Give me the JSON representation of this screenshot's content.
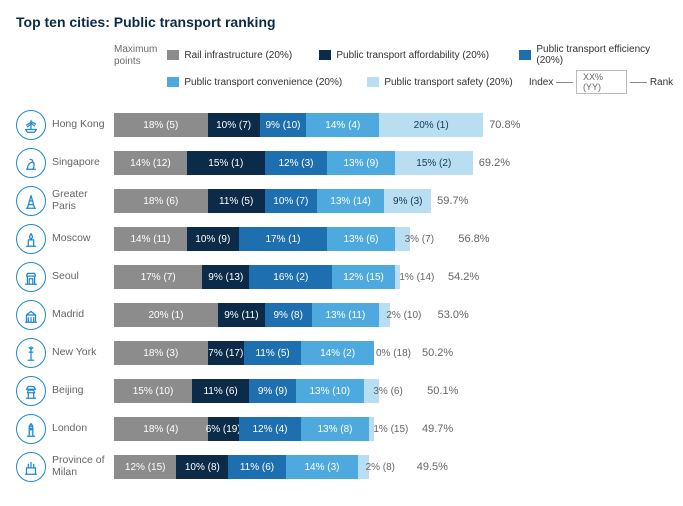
{
  "title": "Top ten cities: Public transport ranking",
  "legend": {
    "max_label_1": "Maximum",
    "max_label_2": "points",
    "items": [
      {
        "label": "Rail infrastructure (20%)",
        "color": "#8c8c8c"
      },
      {
        "label": "Public transport affordability (20%)",
        "color": "#0b2b49"
      },
      {
        "label": "Public transport efficiency (20%)",
        "color": "#1e6fb0"
      },
      {
        "label": "Public transport convenience (20%)",
        "color": "#4ea9de"
      },
      {
        "label": "Public transport safety (20%)",
        "color": "#b9def1"
      }
    ],
    "index_label": "Index",
    "index_sample": "XX% (YY)",
    "rank_label": "Rank"
  },
  "chart": {
    "type": "stacked-bar-horizontal",
    "full_width_pct": 100,
    "colors": {
      "rail": "#8c8c8c",
      "afford": "#0b2b49",
      "eff": "#1e6fb0",
      "conv": "#4ea9de",
      "safe": "#b9def1"
    },
    "label_color_light": "#ffffff",
    "label_color_dark": "#0b3a5a",
    "total_color": "#666666",
    "cities": [
      {
        "name": "Hong Kong",
        "total": "70.8%",
        "segs": [
          {
            "k": "rail",
            "v": 18,
            "r": 5
          },
          {
            "k": "afford",
            "v": 10,
            "r": 7
          },
          {
            "k": "eff",
            "v": 9,
            "r": 10
          },
          {
            "k": "conv",
            "v": 14,
            "r": 4
          },
          {
            "k": "safe",
            "v": 20,
            "r": 1
          }
        ]
      },
      {
        "name": "Singapore",
        "total": "69.2%",
        "segs": [
          {
            "k": "rail",
            "v": 14,
            "r": 12
          },
          {
            "k": "afford",
            "v": 15,
            "r": 1
          },
          {
            "k": "eff",
            "v": 12,
            "r": 3
          },
          {
            "k": "conv",
            "v": 13,
            "r": 9
          },
          {
            "k": "safe",
            "v": 15,
            "r": 2
          }
        ]
      },
      {
        "name": "Greater Paris",
        "total": "59.7%",
        "segs": [
          {
            "k": "rail",
            "v": 18,
            "r": 6
          },
          {
            "k": "afford",
            "v": 11,
            "r": 5
          },
          {
            "k": "eff",
            "v": 10,
            "r": 7
          },
          {
            "k": "conv",
            "v": 13,
            "r": 14
          },
          {
            "k": "safe",
            "v": 9,
            "r": 3
          }
        ]
      },
      {
        "name": "Moscow",
        "total": "56.8%",
        "segs": [
          {
            "k": "rail",
            "v": 14,
            "r": 11
          },
          {
            "k": "afford",
            "v": 10,
            "r": 9
          },
          {
            "k": "eff",
            "v": 17,
            "r": 1
          },
          {
            "k": "conv",
            "v": 13,
            "r": 6
          },
          {
            "k": "safe",
            "v": 3,
            "r": 7
          }
        ]
      },
      {
        "name": "Seoul",
        "total": "54.2%",
        "segs": [
          {
            "k": "rail",
            "v": 17,
            "r": 7
          },
          {
            "k": "afford",
            "v": 9,
            "r": 13
          },
          {
            "k": "eff",
            "v": 16,
            "r": 2
          },
          {
            "k": "conv",
            "v": 12,
            "r": 15
          },
          {
            "k": "safe",
            "v": 1,
            "r": 14
          }
        ]
      },
      {
        "name": "Madrid",
        "total": "53.0%",
        "segs": [
          {
            "k": "rail",
            "v": 20,
            "r": 1
          },
          {
            "k": "afford",
            "v": 9,
            "r": 11
          },
          {
            "k": "eff",
            "v": 9,
            "r": 8
          },
          {
            "k": "conv",
            "v": 13,
            "r": 11
          },
          {
            "k": "safe",
            "v": 2,
            "r": 10
          }
        ]
      },
      {
        "name": "New York",
        "total": "50.2%",
        "segs": [
          {
            "k": "rail",
            "v": 18,
            "r": 3
          },
          {
            "k": "afford",
            "v": 7,
            "r": 17
          },
          {
            "k": "eff",
            "v": 11,
            "r": 5
          },
          {
            "k": "conv",
            "v": 14,
            "r": 2
          },
          {
            "k": "safe",
            "v": 0,
            "r": 18
          }
        ]
      },
      {
        "name": "Beijing",
        "total": "50.1%",
        "segs": [
          {
            "k": "rail",
            "v": 15,
            "r": 10
          },
          {
            "k": "afford",
            "v": 11,
            "r": 6
          },
          {
            "k": "eff",
            "v": 9,
            "r": 9
          },
          {
            "k": "conv",
            "v": 13,
            "r": 10
          },
          {
            "k": "safe",
            "v": 3,
            "r": 6
          }
        ]
      },
      {
        "name": "London",
        "total": "49.7%",
        "segs": [
          {
            "k": "rail",
            "v": 18,
            "r": 4
          },
          {
            "k": "afford",
            "v": 6,
            "r": 19
          },
          {
            "k": "eff",
            "v": 12,
            "r": 4
          },
          {
            "k": "conv",
            "v": 13,
            "r": 8
          },
          {
            "k": "safe",
            "v": 1,
            "r": 15
          }
        ]
      },
      {
        "name": "Province of Milan",
        "total": "49.5%",
        "segs": [
          {
            "k": "rail",
            "v": 12,
            "r": 15
          },
          {
            "k": "afford",
            "v": 10,
            "r": 8
          },
          {
            "k": "eff",
            "v": 11,
            "r": 6
          },
          {
            "k": "conv",
            "v": 14,
            "r": 3
          },
          {
            "k": "safe",
            "v": 2,
            "r": 8
          }
        ]
      }
    ]
  },
  "icons": {
    "Hong Kong": "junk",
    "Singapore": "merlion",
    "Greater Paris": "eiffel",
    "Moscow": "kremlin",
    "Seoul": "gate",
    "Madrid": "palace",
    "New York": "liberty",
    "Beijing": "temple",
    "London": "bigben",
    "Province of Milan": "duomo"
  }
}
